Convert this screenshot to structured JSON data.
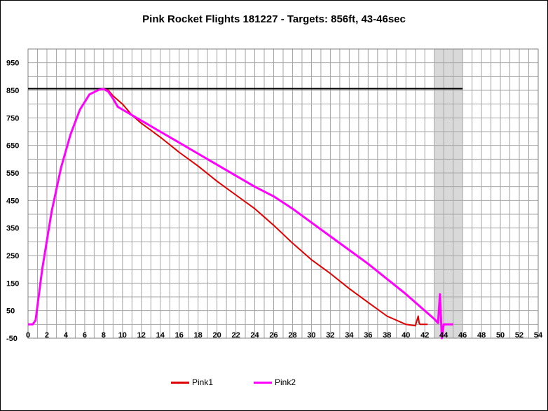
{
  "chart_data": {
    "type": "line",
    "title": "Pink Rocket Flights 181227 - Targets: 856ft, 43-46sec",
    "xlabel": "",
    "ylabel": "",
    "xlim": [
      0,
      54
    ],
    "ylim": [
      -50,
      1000
    ],
    "x_ticks": [
      0,
      2,
      4,
      6,
      8,
      10,
      12,
      14,
      16,
      18,
      20,
      22,
      24,
      26,
      28,
      30,
      32,
      34,
      36,
      38,
      40,
      42,
      44,
      46,
      48,
      50,
      52,
      54
    ],
    "y_ticks": [
      -50,
      50,
      150,
      250,
      350,
      450,
      550,
      650,
      750,
      850,
      950
    ],
    "x_minor_step": 1,
    "y_minor_step": 50,
    "grid": true,
    "target_altitude": 856,
    "target_time_window": [
      43,
      46
    ],
    "target_line_color": "#000000",
    "target_band_color": "#d9d9d9",
    "legend_position": "bottom",
    "series": [
      {
        "name": "Pink1",
        "color": "#e00000",
        "x": [
          0,
          0.5,
          0.8,
          1.5,
          2.5,
          3.5,
          4.5,
          5.5,
          6.5,
          7.5,
          8,
          8.5,
          9,
          10,
          11,
          12,
          13,
          14,
          16,
          18,
          20,
          22,
          24,
          26,
          28,
          30,
          32,
          34,
          36,
          38,
          40,
          41,
          41.3,
          41.4,
          41.5,
          42,
          42.3
        ],
        "y": [
          0,
          0,
          15,
          200,
          410,
          570,
          690,
          780,
          835,
          852,
          855,
          850,
          830,
          800,
          760,
          730,
          705,
          680,
          625,
          575,
          520,
          470,
          420,
          360,
          295,
          235,
          185,
          130,
          80,
          30,
          0,
          -5,
          30,
          5,
          0,
          0,
          0
        ]
      },
      {
        "name": "Pink2",
        "color": "#ff00ff",
        "x": [
          0,
          0.5,
          0.8,
          1.5,
          2.5,
          3.5,
          4.5,
          5.5,
          6.5,
          7.5,
          8,
          8.5,
          9,
          9.5,
          10,
          10.5,
          11,
          12,
          14,
          16,
          18,
          20,
          22,
          24,
          26,
          28,
          30,
          32,
          34,
          36,
          38,
          40,
          42,
          43,
          43.4,
          43.6,
          43.8,
          44,
          44.5,
          45
        ],
        "y": [
          0,
          0,
          15,
          200,
          410,
          570,
          690,
          780,
          835,
          852,
          855,
          845,
          820,
          790,
          780,
          770,
          760,
          740,
          700,
          660,
          620,
          580,
          540,
          500,
          465,
          420,
          370,
          320,
          270,
          220,
          165,
          110,
          50,
          20,
          5,
          110,
          -50,
          0,
          0,
          0
        ]
      }
    ]
  }
}
